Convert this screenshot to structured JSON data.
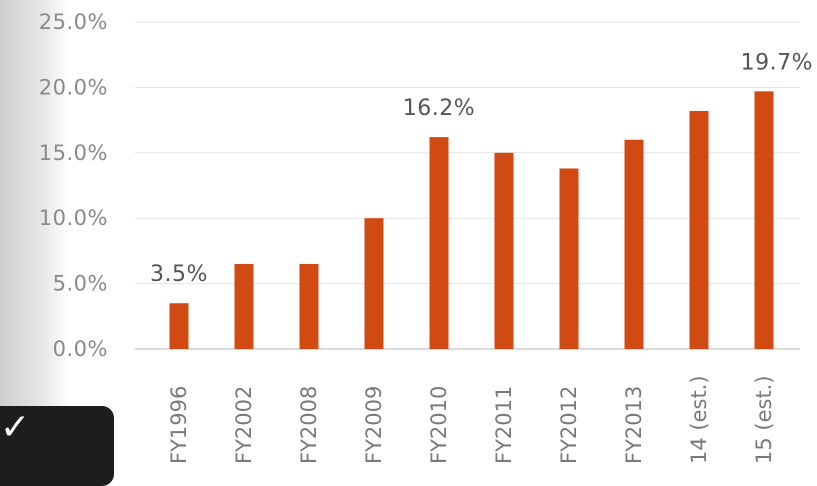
{
  "chart_data": {
    "type": "bar",
    "categories": [
      "FY1996",
      "FY2002",
      "FY2008",
      "FY2009",
      "FY2010",
      "FY2011",
      "FY2012",
      "FY2013",
      "14 (est.)",
      "15 (est.)"
    ],
    "values": [
      3.5,
      6.5,
      6.5,
      10.0,
      16.2,
      15.0,
      13.8,
      16.0,
      18.2,
      19.7
    ],
    "title": "",
    "xlabel": "",
    "ylabel": "",
    "ylim": [
      0,
      25
    ],
    "yticks": [
      "0.0%",
      "5.0%",
      "10.0%",
      "15.0%",
      "20.0%",
      "25.0%"
    ],
    "data_labels": [
      {
        "index": 0,
        "text": "3.5%"
      },
      {
        "index": 4,
        "text": "16.2%"
      },
      {
        "index": 9,
        "text": "19.7%"
      }
    ],
    "grid": true,
    "bar_color": "#d24a13"
  },
  "overlay": {
    "check_icon": "check-icon",
    "check_glyph": "✓",
    "badge_color": "#1d1d1d"
  }
}
